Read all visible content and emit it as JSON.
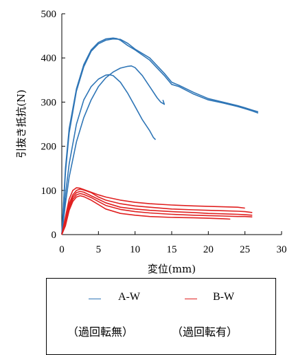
{
  "chart_data": {
    "type": "line",
    "xlabel": "変位(mm)",
    "ylabel": "引抜き抵抗(N)",
    "xlim": [
      0,
      30
    ],
    "ylim": [
      0,
      500
    ],
    "xticks": [
      0,
      5,
      10,
      15,
      20,
      25,
      30
    ],
    "yticks": [
      0,
      100,
      200,
      300,
      400,
      500
    ],
    "grid": false,
    "legend_position": "bottom",
    "series": [
      {
        "name": "A-W",
        "color": "#2e75b6",
        "curves": [
          {
            "x": [
              0,
              0.5,
              1,
              2,
              3,
              4,
              5,
              6,
              7,
              7.5,
              8,
              9,
              10,
              12,
              14,
              15,
              16,
              18,
              20,
              22,
              24,
              25,
              26,
              26.8
            ],
            "y": [
              0,
              150,
              240,
              330,
              385,
              418,
              435,
              443,
              445,
              444,
              440,
              428,
              418,
              395,
              360,
              340,
              335,
              318,
              305,
              298,
              290,
              285,
              280,
              275
            ]
          },
          {
            "x": [
              0,
              0.5,
              1,
              2,
              3,
              4,
              5,
              6,
              7,
              8,
              9,
              10,
              12,
              14,
              15,
              16,
              18,
              20,
              22,
              24,
              25,
              26,
              26.8
            ],
            "y": [
              0,
              140,
              230,
              325,
              380,
              415,
              432,
              440,
              443,
              442,
              433,
              420,
              400,
              365,
              345,
              338,
              322,
              308,
              300,
              292,
              287,
              282,
              278
            ]
          },
          {
            "x": [
              0,
              0.5,
              1,
              2,
              3,
              4,
              5,
              6,
              7,
              8,
              9,
              9.5,
              10,
              11,
              12,
              13,
              13.5,
              14,
              13.8
            ],
            "y": [
              0,
              70,
              130,
              210,
              265,
              305,
              335,
              355,
              368,
              377,
              381,
              382,
              378,
              360,
              335,
              310,
              300,
              295,
              305
            ]
          },
          {
            "x": [
              0,
              0.5,
              1,
              2,
              3,
              4,
              5,
              6,
              6.5,
              7,
              8,
              9,
              10,
              11,
              12,
              12.5,
              12.8
            ],
            "y": [
              0,
              90,
              160,
              250,
              305,
              335,
              352,
              361,
              362,
              360,
              345,
              320,
              290,
              260,
              235,
              220,
              215
            ]
          }
        ]
      },
      {
        "name": "B-W",
        "color": "#e02020",
        "curves": [
          {
            "x": [
              0,
              0.5,
              1,
              1.5,
              2,
              2.5,
              3,
              4,
              5,
              6,
              8,
              10,
              12,
              15,
              18,
              20,
              22,
              24,
              25
            ],
            "y": [
              0,
              40,
              80,
              100,
              106,
              105,
              102,
              96,
              90,
              85,
              78,
              73,
              70,
              67,
              65,
              64,
              63,
              62,
              60
            ]
          },
          {
            "x": [
              0,
              0.5,
              1,
              1.5,
              2,
              2.5,
              3,
              4,
              5,
              6,
              8,
              10,
              12,
              15,
              18,
              20,
              22,
              24,
              25,
              26
            ],
            "y": [
              0,
              35,
              70,
              90,
              100,
              103,
              101,
              95,
              85,
              78,
              70,
              65,
              62,
              58,
              56,
              55,
              54,
              53,
              52,
              50
            ]
          },
          {
            "x": [
              0,
              0.5,
              1,
              1.5,
              2,
              2.5,
              3,
              4,
              5,
              6,
              8,
              10,
              12,
              15,
              18,
              20,
              22,
              24,
              25,
              26
            ],
            "y": [
              0,
              30,
              65,
              85,
              95,
              98,
              96,
              88,
              80,
              72,
              62,
              58,
              55,
              52,
              50,
              48,
              47,
              46,
              45,
              44
            ]
          },
          {
            "x": [
              0,
              0.5,
              1,
              1.5,
              2,
              2.5,
              3,
              4,
              5,
              6,
              8,
              10,
              12,
              15,
              18,
              20,
              22,
              24,
              25,
              26
            ],
            "y": [
              0,
              25,
              60,
              80,
              90,
              93,
              91,
              84,
              75,
              66,
              57,
              52,
              49,
              46,
              44,
              43,
              42,
              41,
              41,
              40
            ]
          },
          {
            "x": [
              0,
              0.5,
              1,
              1.5,
              2,
              2.5,
              3,
              4,
              5,
              6,
              8,
              10,
              12,
              15,
              18,
              20,
              22,
              23
            ],
            "y": [
              0,
              20,
              55,
              75,
              85,
              88,
              86,
              78,
              68,
              58,
              48,
              44,
              41,
              39,
              38,
              37,
              36,
              35
            ]
          }
        ]
      }
    ]
  },
  "legend": {
    "a_label": "A-W",
    "b_label": "B-W",
    "a_note": "（過回転無）",
    "b_note": "（過回転有）"
  }
}
